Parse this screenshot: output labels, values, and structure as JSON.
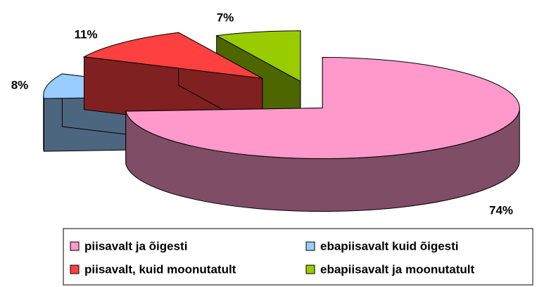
{
  "chart_data": {
    "type": "pie",
    "categories": [
      "piisavalt ja õigesti",
      "ebapiisavalt kuid õigesti",
      "piisavalt, kuid moonutatult",
      "ebapiisavalt ja moonutatult"
    ],
    "values": [
      74,
      8,
      11,
      7
    ],
    "value_labels": [
      "74%",
      "8%",
      "11%",
      "7%"
    ],
    "colors": [
      "#ff99cc",
      "#99ccff",
      "#ff4040",
      "#99cc00"
    ],
    "legend": "bottom"
  }
}
